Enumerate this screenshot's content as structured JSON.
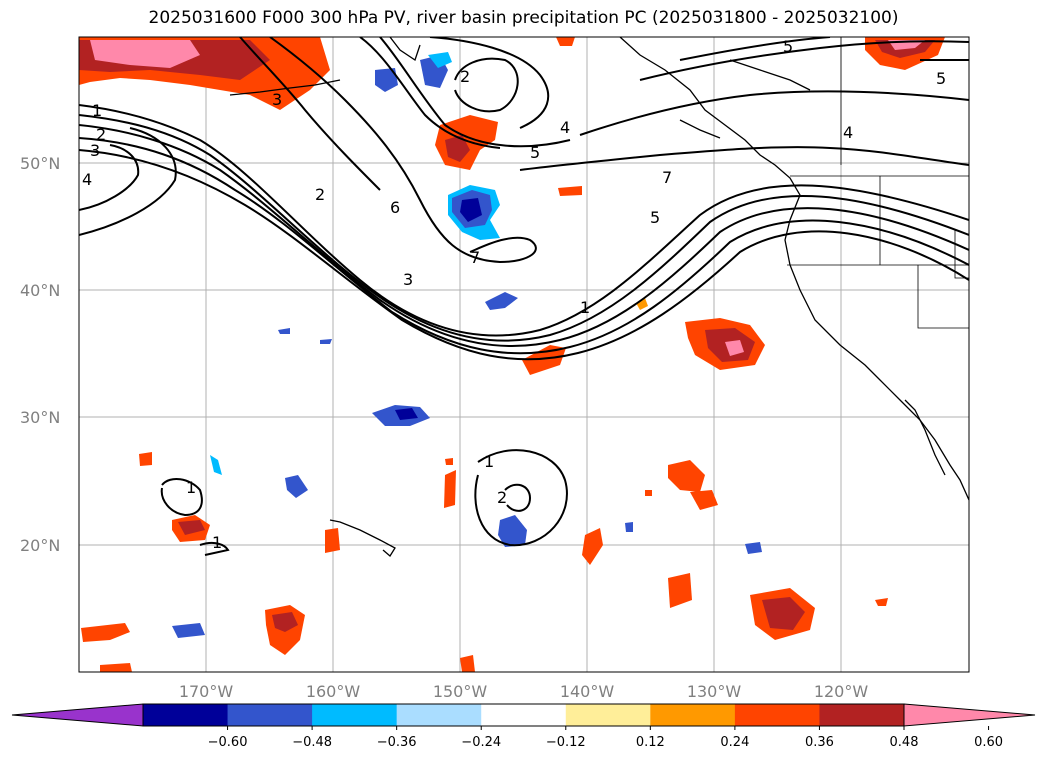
{
  "title": "2025031600 F000 300 hPa PV, river basin precipitation PC (2025031800 - 2025032100)",
  "lat_labels": [
    "50°N",
    "40°N",
    "30°N",
    "20°N"
  ],
  "lon_labels": [
    "170°W",
    "160°W",
    "150°W",
    "140°W",
    "130°W",
    "120°W"
  ],
  "colorbar": {
    "ticks": [
      "−0.60",
      "−0.48",
      "−0.36",
      "−0.24",
      "−0.12",
      "0.12",
      "0.24",
      "0.36",
      "0.48",
      "0.60"
    ],
    "colors": [
      "#9933cc",
      "#000099",
      "#3355cc",
      "#00bbff",
      "#aaddff",
      "#ffffff",
      "#ffee99",
      "#ff9900",
      "#ff4400",
      "#b22222",
      "#ff88aa"
    ]
  },
  "pv_contour_labels": [
    "1",
    "2",
    "3",
    "4",
    "5",
    "6",
    "7"
  ],
  "contour_annotations": [
    {
      "text": "1"
    },
    {
      "text": "2"
    },
    {
      "text": "3"
    },
    {
      "text": "4"
    },
    {
      "text": "2"
    },
    {
      "text": "6"
    },
    {
      "text": "3"
    },
    {
      "text": "7"
    },
    {
      "text": "1"
    },
    {
      "text": "2"
    },
    {
      "text": "4"
    },
    {
      "text": "5"
    },
    {
      "text": "5"
    },
    {
      "text": "5"
    },
    {
      "text": "4"
    },
    {
      "text": "7"
    },
    {
      "text": "5"
    },
    {
      "text": "1"
    },
    {
      "text": "2"
    },
    {
      "text": "1"
    },
    {
      "text": "1"
    },
    {
      "text": "3"
    }
  ]
}
